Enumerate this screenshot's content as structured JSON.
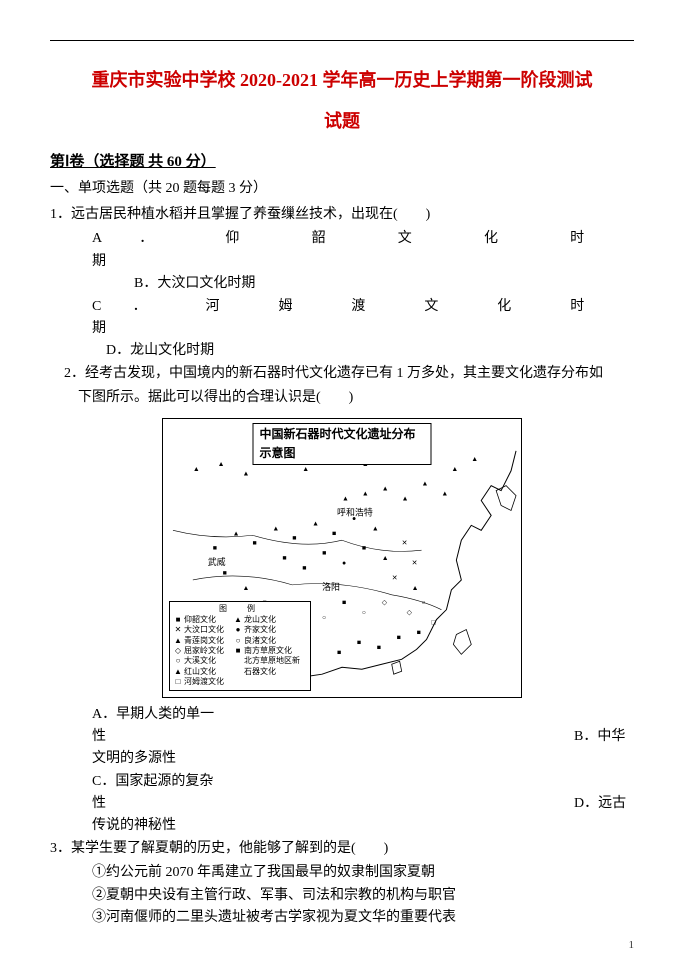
{
  "header": {
    "title_line1": "重庆市实验中学校 2020-2021 学年高一历史上学期第一阶段测试",
    "title_line2": "试题",
    "section": "第Ⅰ卷（选择题 共 60 分）",
    "sub": "一、单项选题（共 20 题每题 3 分）"
  },
  "q1": {
    "stem": "1．远古居民种植水稻并且掌握了养蚕缫丝技术，出现在(　　)",
    "optA_chars": [
      "A",
      "．",
      "仰",
      "韶",
      "文",
      "化",
      "时"
    ],
    "optA_tail": "期",
    "optB": "B．大汶口文化时期",
    "optC_chars": [
      "C",
      "．",
      "河",
      "姆",
      "渡",
      "文",
      "化",
      "时"
    ],
    "optC_tail": "期",
    "optD": "D．龙山文化时期"
  },
  "q2": {
    "stem1": "2．经考古发现，中国境内的新石器时代文化遗存已有 1 万多处，其主要文化遗存分布如",
    "stem2": "下图所示。据此可以得出的合理认识是(　　)",
    "map_title": "中国新石器时代文化遗址分布示意图",
    "legend_title": "图　例",
    "legend": [
      [
        {
          "m": "■",
          "t": "仰韶文化"
        },
        {
          "m": "▲",
          "t": "龙山文化"
        }
      ],
      [
        {
          "m": "✕",
          "t": "大汶口文化"
        },
        {
          "m": "●",
          "t": "齐家文化"
        }
      ],
      [
        {
          "m": "▲",
          "t": "青莲岗文化"
        },
        {
          "m": "○",
          "t": "良渚文化"
        }
      ],
      [
        {
          "m": "◇",
          "t": "屈家岭文化"
        },
        {
          "m": "■",
          "t": "南方草原文化"
        }
      ],
      [
        {
          "m": "○",
          "t": "大溪文化"
        },
        {
          "m": "",
          "t": "北方草原地区新"
        }
      ],
      [
        {
          "m": "▲",
          "t": "红山文化"
        },
        {
          "m": "",
          "t": "石器文化"
        }
      ],
      [
        {
          "m": "□",
          "t": "河姆渡文化"
        },
        {
          "m": "",
          "t": ""
        }
      ]
    ],
    "labels": {
      "wuwei": "武威",
      "luoyang": "洛阳",
      "huhehaote": "呼和浩特"
    },
    "optA1": "A．早期人类的单一",
    "optA2": "性",
    "optB": "B．中华",
    "optB2": "文明的多源性",
    "optC1": "C．国家起源的复杂",
    "optC2": "性",
    "optD": "D．远古",
    "optD2": "传说的神秘性"
  },
  "q3": {
    "stem": "3．某学生要了解夏朝的历史，他能够了解到的是(　　)",
    "l1": "①约公元前 2070 年禹建立了我国最早的奴隶制国家夏朝",
    "l2": "②夏朝中央设有主管行政、军事、司法和宗教的机构与职官",
    "l3": "③河南偃师的二里头遗址被考古学家视为夏文华的重要代表"
  },
  "page": "1"
}
